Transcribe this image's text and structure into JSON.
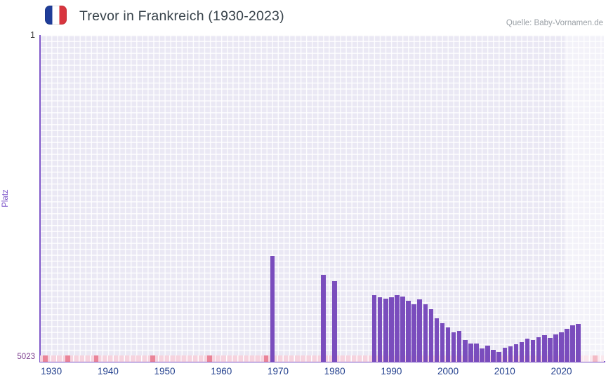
{
  "header": {
    "title": "Trevor in Frankreich (1930-2023)",
    "source": "Quelle: Baby-Vornamen.de",
    "flag_icon": "france-flag"
  },
  "chart_data": {
    "type": "bar",
    "title": "Trevor in Frankreich (1930-2023)",
    "xlabel": "",
    "ylabel": "Platz",
    "y_axis": {
      "label": "Platz",
      "top_tick": "1",
      "bottom_tick": "5023",
      "min": 1,
      "max": 5023,
      "inverted": true
    },
    "x_axis": {
      "tick_years": [
        1930,
        1940,
        1950,
        1960,
        1970,
        1980,
        1990,
        2000,
        2010,
        2020
      ],
      "range_start": 1928.5,
      "range_end": 2028
    },
    "points": [
      {
        "year": 1969,
        "rank": 3400
      },
      {
        "year": 1978,
        "rank": 3690
      },
      {
        "year": 1980,
        "rank": 3780
      },
      {
        "year": 1987,
        "rank": 4000
      },
      {
        "year": 1988,
        "rank": 4030
      },
      {
        "year": 1989,
        "rank": 4050
      },
      {
        "year": 1990,
        "rank": 4030
      },
      {
        "year": 1991,
        "rank": 4000
      },
      {
        "year": 1992,
        "rank": 4020
      },
      {
        "year": 1993,
        "rank": 4085
      },
      {
        "year": 1994,
        "rank": 4140
      },
      {
        "year": 1995,
        "rank": 4065
      },
      {
        "year": 1996,
        "rank": 4140
      },
      {
        "year": 1997,
        "rank": 4215
      },
      {
        "year": 1998,
        "rank": 4360
      },
      {
        "year": 1999,
        "rank": 4435
      },
      {
        "year": 2000,
        "rank": 4500
      },
      {
        "year": 2001,
        "rank": 4575
      },
      {
        "year": 2002,
        "rank": 4545
      },
      {
        "year": 2003,
        "rank": 4685
      },
      {
        "year": 2004,
        "rank": 4740
      },
      {
        "year": 2005,
        "rank": 4740
      },
      {
        "year": 2006,
        "rank": 4815
      },
      {
        "year": 2007,
        "rank": 4770
      },
      {
        "year": 2008,
        "rank": 4840
      },
      {
        "year": 2009,
        "rank": 4870
      },
      {
        "year": 2010,
        "rank": 4805
      },
      {
        "year": 2011,
        "rank": 4785
      },
      {
        "year": 2012,
        "rank": 4750
      },
      {
        "year": 2013,
        "rank": 4720
      },
      {
        "year": 2014,
        "rank": 4665
      },
      {
        "year": 2015,
        "rank": 4685
      },
      {
        "year": 2016,
        "rank": 4645
      },
      {
        "year": 2017,
        "rank": 4610
      },
      {
        "year": 2018,
        "rank": 4655
      },
      {
        "year": 2019,
        "rank": 4600
      },
      {
        "year": 2020,
        "rank": 4575
      },
      {
        "year": 2021,
        "rank": 4520
      },
      {
        "year": 2022,
        "rank": 4465
      },
      {
        "year": 2023,
        "rank": 4445
      }
    ],
    "no_rank_band": {
      "marker_years": [
        1929,
        1933,
        1938,
        1948,
        1958,
        1968,
        2026
      ]
    },
    "recent_band": {
      "start_year": 2021
    },
    "colors": {
      "bar": "#7a4dbd",
      "plot_bg": "#eae8f4",
      "grid": "#ffffff",
      "axis": "#7e57c8",
      "band_bg": "#f6d3de",
      "band_marker": "#ea8498",
      "x_tick": "#23408e",
      "y_top_tick": "#444444",
      "y_bottom_tick": "#7d3f8f",
      "ylabel": "#7b52c8",
      "title": "#37424a",
      "source": "#9aa0a6",
      "flag_blue": "#1f3d99",
      "flag_red": "#d8353f"
    }
  }
}
